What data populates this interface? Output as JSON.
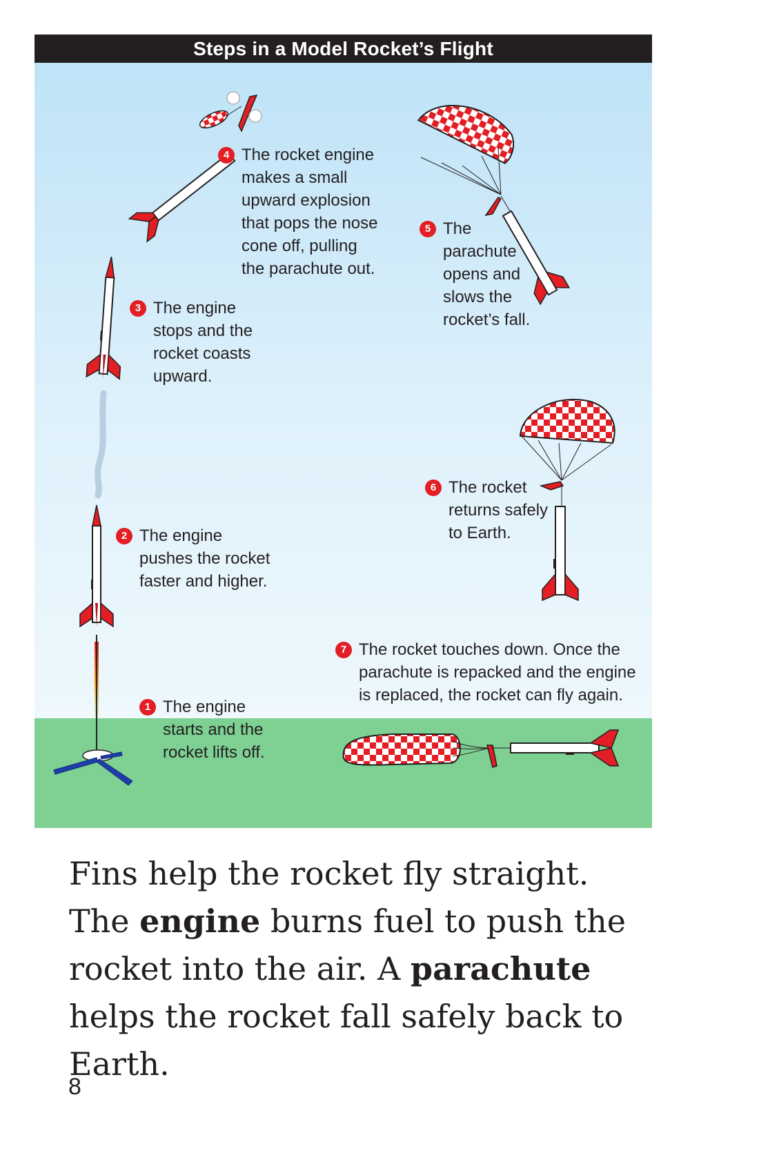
{
  "figure": {
    "title": "Steps in a Model Rocket’s Flight",
    "steps": [
      {
        "number": "1",
        "text": "The engine\nstarts and the\nrocket lifts off."
      },
      {
        "number": "2",
        "text": "The engine\npushes the rocket\nfaster and higher."
      },
      {
        "number": "3",
        "text": "The engine\nstops and the\nrocket coasts\nupward."
      },
      {
        "number": "4",
        "text": "The rocket engine\nmakes a small\nupward explosion\nthat pops the nose\ncone off, pulling\nthe parachute out."
      },
      {
        "number": "5",
        "text": "The\nparachute\nopens and\nslows the\nrocket’s fall."
      },
      {
        "number": "6",
        "text": "The rocket\nreturns safely\nto Earth."
      },
      {
        "number": "7",
        "text": "The rocket touches down. Once the\nparachute is repacked and the engine\nis replaced, the rocket can fly again."
      }
    ],
    "colors": {
      "sky": "#bfe3f7",
      "ground": "#7ed093",
      "fins": "#e31e24",
      "launcher": "#1e3fa8"
    }
  },
  "body": {
    "part1": "Fins help the rocket fly straight. The ",
    "bold1": "engine",
    "part2": " burns fuel to push the rocket into the air. A ",
    "bold2": "parachute",
    "part3": " helps the rocket fall safely back to Earth."
  },
  "page_number": "8"
}
